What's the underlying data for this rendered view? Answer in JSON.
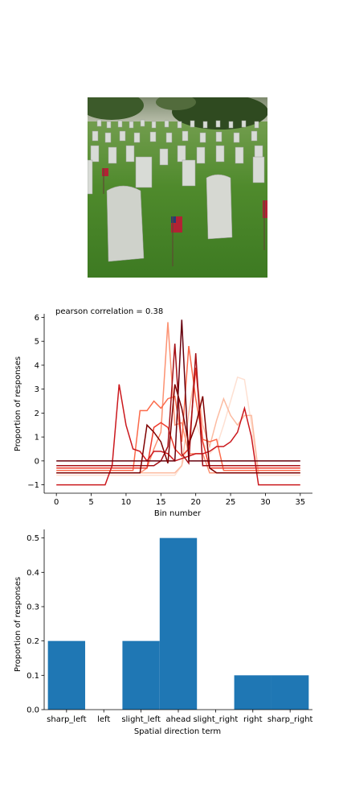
{
  "photo": {
    "subject": "cemetery headstones with small american flags on grass"
  },
  "chart_data": [
    {
      "type": "line",
      "annotation": "pearson correlation = 0.38",
      "xlabel": "Bin number",
      "ylabel": "Proportion of responses",
      "xlim": [
        -1.75,
        36.75
      ],
      "ylim": [
        -1.35,
        6.15
      ],
      "xticks": [
        "0",
        "5",
        "10",
        "15",
        "20",
        "25",
        "30",
        "35"
      ],
      "yticks": [
        "−1",
        "0",
        "1",
        "2",
        "3",
        "4",
        "5",
        "6"
      ],
      "x": [
        0,
        1,
        2,
        3,
        4,
        5,
        6,
        7,
        8,
        9,
        10,
        11,
        12,
        13,
        14,
        15,
        16,
        17,
        18,
        19,
        20,
        21,
        22,
        23,
        24,
        25,
        26,
        27,
        28,
        29,
        30,
        31,
        32,
        33,
        34,
        35
      ],
      "series": [
        {
          "color": "#fee0d2",
          "values": [
            -0.6,
            -0.6,
            -0.6,
            -0.6,
            -0.6,
            -0.6,
            -0.6,
            -0.6,
            -0.6,
            -0.6,
            -0.6,
            -0.6,
            -0.6,
            -0.6,
            -0.6,
            -0.6,
            -0.6,
            -0.6,
            -0.2,
            0.8,
            1.6,
            0.8,
            0.3,
            0.6,
            1.5,
            2.5,
            3.5,
            3.4,
            1.5,
            -0.6,
            -0.6,
            -0.6,
            -0.6,
            -0.6,
            -0.6,
            -0.6
          ]
        },
        {
          "color": "#fcbba1",
          "values": [
            -0.5,
            -0.5,
            -0.5,
            -0.5,
            -0.5,
            -0.5,
            -0.5,
            -0.5,
            -0.5,
            -0.5,
            -0.5,
            -0.5,
            -0.5,
            -0.5,
            -0.5,
            -0.5,
            -0.5,
            -0.5,
            -0.2,
            2.0,
            3.8,
            1.5,
            0.6,
            1.7,
            2.6,
            1.9,
            1.5,
            1.9,
            1.9,
            -0.5,
            -0.5,
            -0.5,
            -0.5,
            -0.5,
            -0.5,
            -0.5
          ]
        },
        {
          "color": "#fc9272",
          "values": [
            -0.5,
            -0.5,
            -0.5,
            -0.5,
            -0.5,
            -0.5,
            -0.5,
            -0.5,
            -0.5,
            -0.5,
            -0.5,
            -0.5,
            -0.5,
            -0.3,
            0.5,
            1.2,
            5.8,
            1.5,
            1.6,
            0.3,
            0.3,
            0.3,
            -0.5,
            -0.5,
            -0.5,
            -0.5,
            -0.5,
            -0.5,
            -0.5,
            -0.5,
            -0.5,
            -0.5,
            -0.5,
            -0.5,
            -0.5,
            -0.5
          ]
        },
        {
          "color": "#fb6a4a",
          "values": [
            -0.4,
            -0.4,
            -0.4,
            -0.4,
            -0.4,
            -0.4,
            -0.4,
            -0.4,
            -0.4,
            -0.4,
            -0.4,
            -0.4,
            2.1,
            2.1,
            2.5,
            2.2,
            2.6,
            2.7,
            0.8,
            4.8,
            2.6,
            0.9,
            0.8,
            0.9,
            -0.4,
            -0.4,
            -0.4,
            -0.4,
            -0.4,
            -0.4,
            -0.4,
            -0.4,
            -0.4,
            -0.4,
            -0.4,
            -0.4
          ]
        },
        {
          "color": "#ef3b2c",
          "values": [
            -0.3,
            -0.3,
            -0.3,
            -0.3,
            -0.3,
            -0.3,
            -0.3,
            -0.3,
            -0.3,
            -0.3,
            -0.3,
            -0.3,
            -0.3,
            -0.3,
            1.4,
            1.6,
            1.4,
            0.5,
            0.2,
            0.5,
            3.9,
            0.8,
            -0.3,
            -0.3,
            -0.3,
            -0.3,
            -0.3,
            -0.3,
            -0.3,
            -0.3,
            -0.3,
            -0.3,
            -0.3,
            -0.3,
            -0.3,
            -0.3
          ]
        },
        {
          "color": "#cb181d",
          "values": [
            -1.0,
            -1.0,
            -1.0,
            -1.0,
            -1.0,
            -1.0,
            -1.0,
            -1.0,
            -0.2,
            3.2,
            1.5,
            0.5,
            0.4,
            0.0,
            0.4,
            0.4,
            0.3,
            0.0,
            0.1,
            0.2,
            0.3,
            0.3,
            0.4,
            0.6,
            0.6,
            0.8,
            1.2,
            2.2,
            1.0,
            -1.0,
            -1.0,
            -1.0,
            -1.0,
            -1.0,
            -1.0,
            -1.0
          ]
        },
        {
          "color": "#a50f15",
          "values": [
            -0.2,
            -0.2,
            -0.2,
            -0.2,
            -0.2,
            -0.2,
            -0.2,
            -0.2,
            -0.2,
            -0.2,
            -0.2,
            -0.2,
            -0.2,
            -0.2,
            -0.2,
            0.0,
            0.6,
            4.9,
            0.3,
            -0.1,
            4.5,
            -0.2,
            -0.2,
            -0.2,
            -0.2,
            -0.2,
            -0.2,
            -0.2,
            -0.2,
            -0.2,
            -0.2,
            -0.2,
            -0.2,
            -0.2,
            -0.2,
            -0.2
          ]
        },
        {
          "color": "#67000d",
          "values": [
            0.0,
            0.0,
            0.0,
            0.0,
            0.0,
            0.0,
            0.0,
            0.0,
            0.0,
            0.0,
            0.0,
            0.0,
            0.0,
            0.0,
            0.0,
            0.0,
            0.0,
            0.0,
            5.9,
            0.0,
            0.0,
            0.0,
            0.0,
            0.0,
            0.0,
            0.0,
            0.0,
            0.0,
            0.0,
            0.0,
            0.0,
            0.0,
            0.0,
            0.0,
            0.0,
            0.0
          ]
        },
        {
          "color": "#7f0000",
          "values": [
            -0.5,
            -0.5,
            -0.5,
            -0.5,
            -0.5,
            -0.5,
            -0.5,
            -0.5,
            -0.5,
            -0.5,
            -0.5,
            -0.5,
            -0.5,
            1.5,
            1.2,
            0.8,
            -0.1,
            3.2,
            2.2,
            0.7,
            1.5,
            2.7,
            -0.3,
            -0.5,
            -0.5,
            -0.5,
            -0.5,
            -0.5,
            -0.5,
            -0.5,
            -0.5,
            -0.5,
            -0.5,
            -0.5,
            -0.5,
            -0.5
          ]
        }
      ]
    },
    {
      "type": "bar",
      "xlabel": "Spatial direction term",
      "ylabel": "Proportion of responses",
      "categories": [
        "sharp_left",
        "left",
        "slight_left",
        "ahead",
        "slight_right",
        "right",
        "sharp_right"
      ],
      "values": [
        0.2,
        0.0,
        0.2,
        0.5,
        0.0,
        0.1,
        0.1
      ],
      "ylim": [
        0,
        0.525
      ],
      "yticks": [
        "0.0",
        "0.1",
        "0.2",
        "0.3",
        "0.4",
        "0.5"
      ],
      "bar_color": "#1f77b4"
    }
  ]
}
